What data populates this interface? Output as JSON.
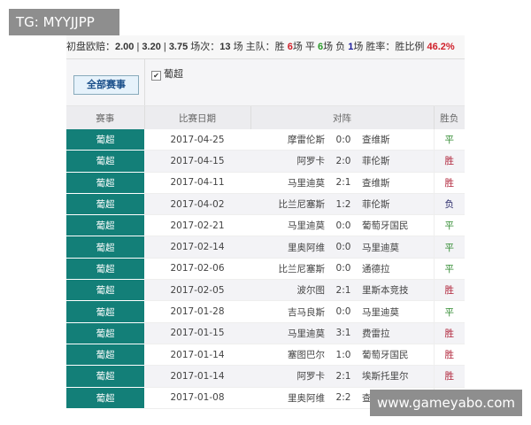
{
  "watermarks": {
    "top_left": "TG: MYYJJPP",
    "bottom_right": "www.gameyabo.com"
  },
  "stats": {
    "odds_label": "初盘欧赔：",
    "odds": [
      "2.00",
      "3.20",
      "3.75"
    ],
    "matches_label": "场次：",
    "matches": "13",
    "matches_unit": "场",
    "home_label": "主队：",
    "win_label": "胜",
    "wins": "6",
    "draw_label": "场 平",
    "draws": "6",
    "loss_label": "场 负",
    "losses": "1",
    "loss_unit": "场",
    "rate_label": "胜率：胜比例",
    "rate": "46.2%"
  },
  "filter": {
    "all_button": "全部赛事",
    "league_checkbox": "葡超",
    "checked": true
  },
  "columns": [
    "赛事",
    "比赛日期",
    "对阵",
    "胜负"
  ],
  "colors": {
    "league_bg": "#137f78",
    "win": "#b0243a",
    "draw": "#2f8a2f",
    "loss": "#2a2a6a"
  },
  "rows": [
    {
      "league": "葡超",
      "date": "2017-04-25",
      "home": "摩雷伦斯",
      "score": "0:0",
      "away": "查维斯",
      "result": "平"
    },
    {
      "league": "葡超",
      "date": "2017-04-15",
      "home": "阿罗卡",
      "score": "2:0",
      "away": "菲伦斯",
      "result": "胜"
    },
    {
      "league": "葡超",
      "date": "2017-04-11",
      "home": "马里迪莫",
      "score": "2:1",
      "away": "查维斯",
      "result": "胜"
    },
    {
      "league": "葡超",
      "date": "2017-04-02",
      "home": "比兰尼塞斯",
      "score": "1:2",
      "away": "菲伦斯",
      "result": "负"
    },
    {
      "league": "葡超",
      "date": "2017-02-21",
      "home": "马里迪莫",
      "score": "0:0",
      "away": "葡萄牙国民",
      "result": "平"
    },
    {
      "league": "葡超",
      "date": "2017-02-14",
      "home": "里奥阿维",
      "score": "0:0",
      "away": "马里迪莫",
      "result": "平"
    },
    {
      "league": "葡超",
      "date": "2017-02-06",
      "home": "比兰尼塞斯",
      "score": "0:0",
      "away": "通德拉",
      "result": "平"
    },
    {
      "league": "葡超",
      "date": "2017-02-05",
      "home": "波尔图",
      "score": "2:1",
      "away": "里斯本竞技",
      "result": "胜"
    },
    {
      "league": "葡超",
      "date": "2017-01-28",
      "home": "吉马良斯",
      "score": "0:0",
      "away": "马里迪莫",
      "result": "平"
    },
    {
      "league": "葡超",
      "date": "2017-01-15",
      "home": "马里迪莫",
      "score": "3:1",
      "away": "费雷拉",
      "result": "胜"
    },
    {
      "league": "葡超",
      "date": "2017-01-14",
      "home": "塞图巴尔",
      "score": "1:0",
      "away": "葡萄牙国民",
      "result": "胜"
    },
    {
      "league": "葡超",
      "date": "2017-01-14",
      "home": "阿罗卡",
      "score": "2:1",
      "away": "埃斯托里尔",
      "result": "胜"
    },
    {
      "league": "葡超",
      "date": "2017-01-08",
      "home": "里奥阿维",
      "score": "2:2",
      "away": "查维斯",
      "result": "平"
    }
  ]
}
